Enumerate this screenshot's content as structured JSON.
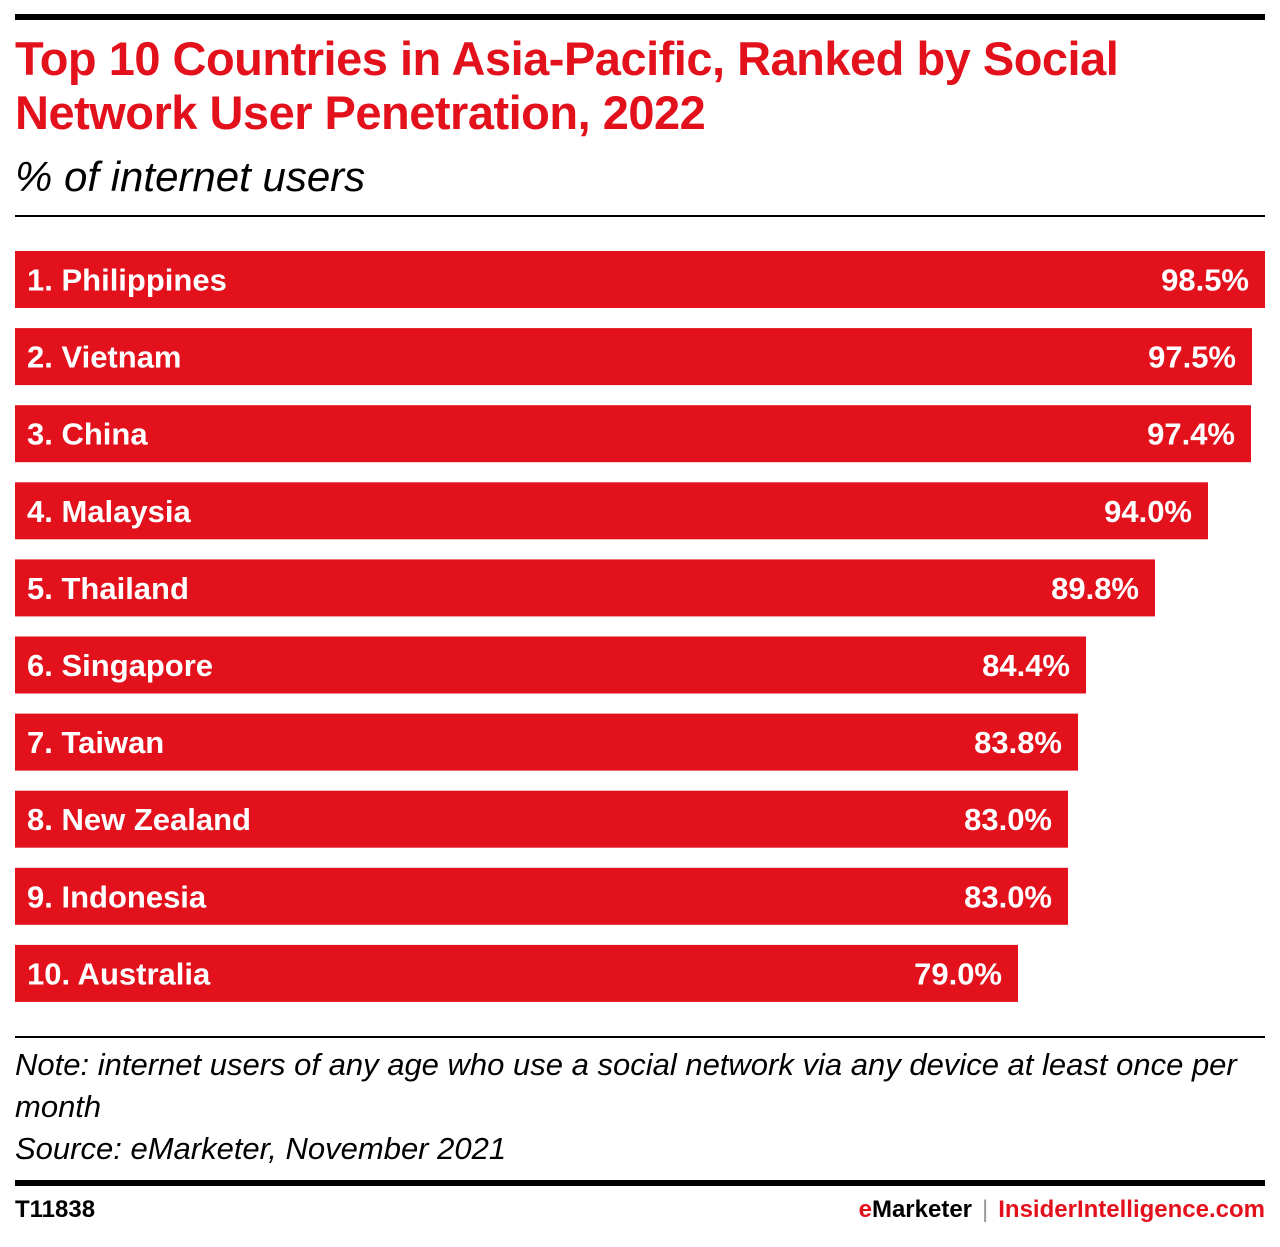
{
  "header": {
    "title": "Top 10 Countries in Asia-Pacific, Ranked by Social Network User Penetration, 2022",
    "subtitle": "% of internet users"
  },
  "colors": {
    "bar": "#e3111c",
    "title": "#e3111c",
    "label": "#ffffff"
  },
  "chart_data": {
    "type": "bar",
    "orientation": "horizontal",
    "title": "Top 10 Countries in Asia-Pacific, Ranked by Social Network User Penetration, 2022",
    "subtitle": "% of internet users",
    "categories": [
      "1. Philippines",
      "2. Vietnam",
      "3. China",
      "4. Malaysia",
      "5. Thailand",
      "6. Singapore",
      "7. Taiwan",
      "8. New Zealand",
      "9. Indonesia",
      "10. Australia"
    ],
    "values": [
      98.5,
      97.5,
      97.4,
      94.0,
      89.8,
      84.4,
      83.8,
      83.0,
      83.0,
      79.0
    ],
    "value_labels": [
      "98.5%",
      "97.5%",
      "97.4%",
      "94.0%",
      "89.8%",
      "84.4%",
      "83.8%",
      "83.0%",
      "83.0%",
      "79.0%"
    ],
    "xlim": [
      0,
      98.5
    ],
    "grid": false,
    "legend": "none"
  },
  "footer": {
    "note": "Note: internet users of any age who use a social network via any device at least once per month",
    "source": "Source: eMarketer, November 2021",
    "code": "T11838",
    "brand_e": "e",
    "brand_marketer": "Marketer",
    "separator": "|",
    "brand_site": "InsiderIntelligence.com"
  }
}
